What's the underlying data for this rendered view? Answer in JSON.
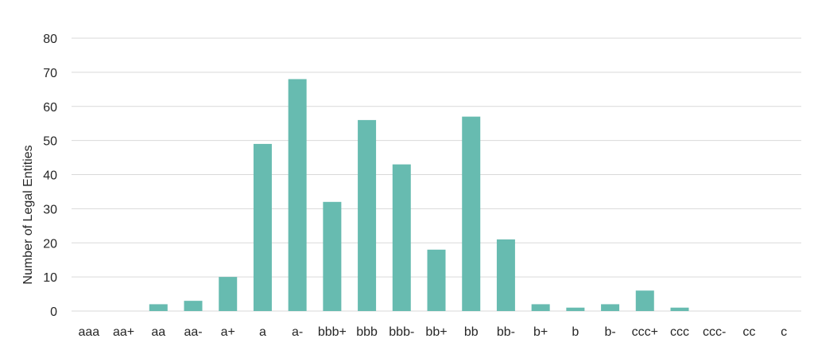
{
  "chart_data": {
    "type": "bar",
    "title": "",
    "xlabel": "",
    "ylabel": "Number of Legal Entities",
    "ylim": [
      0,
      80
    ],
    "yticks": [
      0,
      10,
      20,
      30,
      40,
      50,
      60,
      70,
      80
    ],
    "grid": true,
    "legend": "none",
    "categories": [
      "aaa",
      "aa+",
      "aa",
      "aa-",
      "a+",
      "a",
      "a-",
      "bbb+",
      "bbb",
      "bbb-",
      "bb+",
      "bb",
      "bb-",
      "b+",
      "b",
      "b-",
      "ccc+",
      "ccc",
      "ccc-",
      "cc",
      "c"
    ],
    "values": [
      0,
      0,
      2,
      3,
      10,
      49,
      68,
      32,
      56,
      43,
      18,
      57,
      21,
      2,
      1,
      2,
      6,
      1,
      0,
      0,
      0
    ],
    "bar_color": "#67bbb0"
  }
}
